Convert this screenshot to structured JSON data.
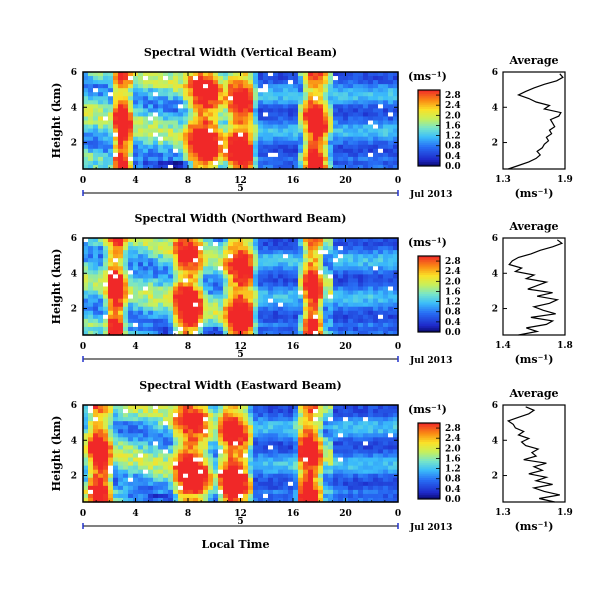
{
  "figure": {
    "x_axis_label": "Local Time",
    "date_label": "Jul 2013",
    "day_label": "5",
    "time_ticks": [
      "0",
      "4",
      "8",
      "12",
      "16",
      "20",
      "0"
    ],
    "unit": "(ms⁻¹)"
  },
  "chart_data": [
    {
      "type": "heatmap",
      "title": "Spectral Width (Vertical Beam)",
      "ylabel": "Height (km)",
      "xlabel": "",
      "x_range": [
        0,
        24
      ],
      "y_range": [
        0.5,
        6
      ],
      "y_ticks": [
        "6",
        "4",
        "2"
      ],
      "colorbar": {
        "label": "(ms⁻¹)",
        "ticks": [
          "2.8",
          "2.4",
          "2.0",
          "1.6",
          "1.2",
          "0.8",
          "0.4",
          "0.0"
        ],
        "range": [
          0,
          3.0
        ]
      },
      "hot_bands": [
        [
          2.5,
          3.5
        ],
        [
          8,
          10.5
        ],
        [
          11,
          13
        ],
        [
          17,
          18.5
        ]
      ],
      "average_profile": {
        "title": "Average",
        "xlabel": "(ms⁻¹)",
        "x_ticks": [
          "1.3",
          "1.9"
        ],
        "x_range": [
          1.3,
          1.9
        ],
        "y_ticks": [
          "6",
          "4",
          "2"
        ],
        "y_range": [
          0.5,
          6
        ],
        "height": [
          0.5,
          0.7,
          0.9,
          1.1,
          1.3,
          1.5,
          1.7,
          1.9,
          2.1,
          2.3,
          2.5,
          2.7,
          2.9,
          3.1,
          3.3,
          3.5,
          3.7,
          3.9,
          4.1,
          4.3,
          4.5,
          4.7,
          4.9,
          5.1,
          5.3,
          5.5,
          5.7,
          5.9
        ],
        "value": [
          1.35,
          1.45,
          1.55,
          1.62,
          1.66,
          1.63,
          1.68,
          1.7,
          1.74,
          1.72,
          1.77,
          1.75,
          1.8,
          1.78,
          1.76,
          1.84,
          1.86,
          1.7,
          1.75,
          1.62,
          1.55,
          1.45,
          1.52,
          1.6,
          1.7,
          1.82,
          1.88,
          1.85
        ]
      }
    },
    {
      "type": "heatmap",
      "title": "Spectral Width (Northward Beam)",
      "ylabel": "Height (km)",
      "xlabel": "",
      "x_range": [
        0,
        24
      ],
      "y_range": [
        0.5,
        6
      ],
      "y_ticks": [
        "6",
        "4",
        "2"
      ],
      "colorbar": {
        "label": "(ms⁻¹)",
        "ticks": [
          "2.8",
          "2.4",
          "2.0",
          "1.6",
          "1.2",
          "0.8",
          "0.4",
          "0.0"
        ],
        "range": [
          0,
          3.0
        ]
      },
      "hot_bands": [
        [
          2,
          3
        ],
        [
          7,
          9
        ],
        [
          11,
          13
        ],
        [
          17,
          18
        ]
      ],
      "average_profile": {
        "title": "Average",
        "xlabel": "(ms⁻¹)",
        "x_ticks": [
          "1.4",
          "1.8"
        ],
        "x_range": [
          1.4,
          1.8
        ],
        "y_ticks": [
          "6",
          "4",
          "2"
        ],
        "y_range": [
          0.5,
          6
        ],
        "height": [
          0.5,
          0.7,
          0.9,
          1.1,
          1.3,
          1.5,
          1.7,
          1.9,
          2.1,
          2.3,
          2.5,
          2.7,
          2.9,
          3.1,
          3.3,
          3.5,
          3.7,
          3.9,
          4.1,
          4.3,
          4.5,
          4.7,
          4.9,
          5.1,
          5.3,
          5.5,
          5.7,
          5.9
        ],
        "value": [
          1.5,
          1.62,
          1.55,
          1.68,
          1.72,
          1.58,
          1.74,
          1.66,
          1.6,
          1.7,
          1.75,
          1.62,
          1.72,
          1.56,
          1.62,
          1.68,
          1.55,
          1.6,
          1.48,
          1.52,
          1.44,
          1.46,
          1.5,
          1.58,
          1.64,
          1.72,
          1.78,
          1.75
        ]
      }
    },
    {
      "type": "heatmap",
      "title": "Spectral Width (Eastward Beam)",
      "ylabel": "Height (km)",
      "xlabel": "Local Time",
      "x_range": [
        0,
        24
      ],
      "y_range": [
        0.5,
        6
      ],
      "y_ticks": [
        "6",
        "4",
        "2"
      ],
      "colorbar": {
        "label": "(ms⁻¹)",
        "ticks": [
          "2.8",
          "2.4",
          "2.0",
          "1.6",
          "1.2",
          "0.8",
          "0.4",
          "0.0"
        ],
        "range": [
          0,
          3.0
        ]
      },
      "hot_bands": [
        [
          0.5,
          2
        ],
        [
          7,
          9.5
        ],
        [
          10.5,
          12.5
        ],
        [
          16.5,
          18
        ]
      ],
      "average_profile": {
        "title": "Average",
        "xlabel": "(ms⁻¹)",
        "x_ticks": [
          "1.3",
          "1.9"
        ],
        "x_range": [
          1.3,
          1.9
        ],
        "y_ticks": [
          "6",
          "4",
          "2"
        ],
        "y_range": [
          0.5,
          6
        ],
        "height": [
          0.5,
          0.7,
          0.9,
          1.1,
          1.3,
          1.5,
          1.7,
          1.9,
          2.1,
          2.3,
          2.5,
          2.7,
          2.9,
          3.1,
          3.3,
          3.5,
          3.7,
          3.9,
          4.1,
          4.3,
          4.5,
          4.7,
          4.9,
          5.1,
          5.3,
          5.5,
          5.7,
          5.9
        ],
        "value": [
          1.8,
          1.65,
          1.85,
          1.7,
          1.6,
          1.78,
          1.62,
          1.72,
          1.55,
          1.68,
          1.6,
          1.72,
          1.5,
          1.62,
          1.58,
          1.64,
          1.52,
          1.48,
          1.55,
          1.45,
          1.5,
          1.42,
          1.4,
          1.35,
          1.45,
          1.55,
          1.6,
          1.52
        ]
      }
    }
  ]
}
